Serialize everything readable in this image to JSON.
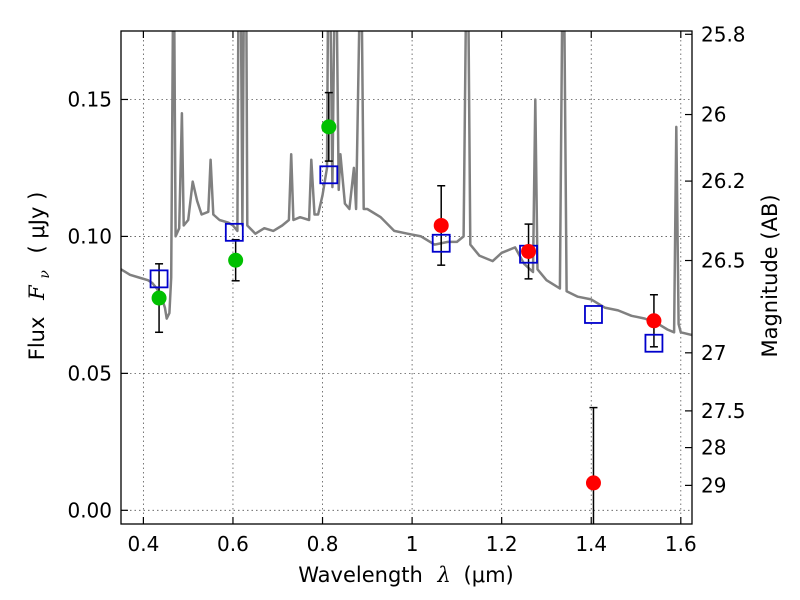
{
  "chart_data": {
    "type": "scatter",
    "xlabel": "Wavelength",
    "xlabel_symbol": "λ",
    "xlabel_unit": "(μm)",
    "ylabel": "Flux",
    "ylabel_symbol": "F",
    "ylabel_subscript": "ν",
    "ylabel_unit": "( μJy )",
    "y2label": "Magnitude (AB)",
    "xlim": [
      0.35,
      1.625
    ],
    "ylim": [
      -0.005,
      0.175
    ],
    "xticks": [
      0.4,
      0.6,
      0.8,
      1.0,
      1.2,
      1.4,
      1.6
    ],
    "xtick_labels": [
      "0.4",
      "0.6",
      "0.8",
      "1",
      "1.2",
      "1.4",
      "1.6"
    ],
    "yticks": [
      0.0,
      0.05,
      0.1,
      0.15
    ],
    "ytick_labels": [
      "0.00",
      "0.05",
      "0.10",
      "0.15"
    ],
    "y2ticks": [
      {
        "label": "25.8",
        "flux": 0.1738
      },
      {
        "label": "26",
        "flux": 0.1445
      },
      {
        "label": "26.2",
        "flux": 0.1202
      },
      {
        "label": "26.5",
        "flux": 0.0912
      },
      {
        "label": "27",
        "flux": 0.0575
      },
      {
        "label": "27.5",
        "flux": 0.0363
      },
      {
        "label": "28",
        "flux": 0.0229
      },
      {
        "label": "29",
        "flux": 0.0091
      }
    ],
    "grid": true,
    "colors": {
      "model": "#808080",
      "green": "#00c000",
      "red": "#ff0000",
      "model_points": "#0000cc",
      "errorbar": "#000000",
      "grid": "#555555"
    },
    "series": [
      {
        "marker": "circle",
        "color": "green",
        "points": [
          {
            "x": 0.435,
            "y": 0.0775,
            "yerr": 0.0125
          },
          {
            "x": 0.606,
            "y": 0.0913,
            "yerr": 0.0075
          },
          {
            "x": 0.814,
            "y": 0.14,
            "yerr": 0.0125
          }
        ]
      },
      {
        "marker": "circle",
        "color": "red",
        "points": [
          {
            "x": 1.065,
            "y": 0.104,
            "yerr": 0.0145
          },
          {
            "x": 1.26,
            "y": 0.0945,
            "yerr": 0.01
          },
          {
            "x": 1.405,
            "y": 0.01,
            "yerr": 0.0275
          },
          {
            "x": 1.54,
            "y": 0.0692,
            "yerr": 0.0095
          }
        ]
      },
      {
        "marker": "open-square",
        "color": "model_points",
        "points": [
          {
            "x": 0.435,
            "y": 0.0845
          },
          {
            "x": 0.603,
            "y": 0.1015
          },
          {
            "x": 0.814,
            "y": 0.1225
          },
          {
            "x": 1.065,
            "y": 0.0975
          },
          {
            "x": 1.26,
            "y": 0.0935
          },
          {
            "x": 1.405,
            "y": 0.0715
          },
          {
            "x": 1.54,
            "y": 0.061
          }
        ]
      }
    ],
    "model_spectrum": {
      "color": "model",
      "points": [
        [
          0.35,
          0.088
        ],
        [
          0.37,
          0.086
        ],
        [
          0.39,
          0.085
        ],
        [
          0.41,
          0.084
        ],
        [
          0.42,
          0.083
        ],
        [
          0.43,
          0.081
        ],
        [
          0.44,
          0.078
        ],
        [
          0.448,
          0.074
        ],
        [
          0.452,
          0.07
        ],
        [
          0.458,
          0.072
        ],
        [
          0.462,
          0.085
        ],
        [
          0.466,
          0.178
        ],
        [
          0.469,
          0.178
        ],
        [
          0.472,
          0.1
        ],
        [
          0.48,
          0.103
        ],
        [
          0.486,
          0.145
        ],
        [
          0.49,
          0.104
        ],
        [
          0.5,
          0.106
        ],
        [
          0.51,
          0.12
        ],
        [
          0.52,
          0.113
        ],
        [
          0.53,
          0.108
        ],
        [
          0.545,
          0.109
        ],
        [
          0.55,
          0.128
        ],
        [
          0.556,
          0.108
        ],
        [
          0.57,
          0.106
        ],
        [
          0.59,
          0.105
        ],
        [
          0.6,
          0.104
        ],
        [
          0.61,
          0.102
        ],
        [
          0.612,
          0.178
        ],
        [
          0.618,
          0.178
        ],
        [
          0.621,
          0.104
        ],
        [
          0.624,
          0.178
        ],
        [
          0.63,
          0.178
        ],
        [
          0.632,
          0.104
        ],
        [
          0.65,
          0.101
        ],
        [
          0.67,
          0.103
        ],
        [
          0.69,
          0.102
        ],
        [
          0.71,
          0.104
        ],
        [
          0.725,
          0.106
        ],
        [
          0.73,
          0.13
        ],
        [
          0.735,
          0.106
        ],
        [
          0.75,
          0.107
        ],
        [
          0.77,
          0.106
        ],
        [
          0.775,
          0.128
        ],
        [
          0.782,
          0.108
        ],
        [
          0.79,
          0.108
        ],
        [
          0.8,
          0.115
        ],
        [
          0.81,
          0.125
        ],
        [
          0.812,
          0.178
        ],
        [
          0.818,
          0.178
        ],
        [
          0.822,
          0.118
        ],
        [
          0.826,
          0.178
        ],
        [
          0.832,
          0.178
        ],
        [
          0.836,
          0.117
        ],
        [
          0.84,
          0.13
        ],
        [
          0.85,
          0.112
        ],
        [
          0.86,
          0.11
        ],
        [
          0.87,
          0.125
        ],
        [
          0.875,
          0.11
        ],
        [
          0.882,
          0.178
        ],
        [
          0.888,
          0.178
        ],
        [
          0.892,
          0.11
        ],
        [
          0.9,
          0.11
        ],
        [
          0.93,
          0.107
        ],
        [
          0.96,
          0.102
        ],
        [
          0.99,
          0.101
        ],
        [
          1.02,
          0.1
        ],
        [
          1.05,
          0.097
        ],
        [
          1.08,
          0.098
        ],
        [
          1.1,
          0.098
        ],
        [
          1.115,
          0.1
        ],
        [
          1.12,
          0.178
        ],
        [
          1.126,
          0.178
        ],
        [
          1.13,
          0.097
        ],
        [
          1.15,
          0.093
        ],
        [
          1.18,
          0.091
        ],
        [
          1.2,
          0.094
        ],
        [
          1.23,
          0.096
        ],
        [
          1.25,
          0.09
        ],
        [
          1.27,
          0.087
        ],
        [
          1.275,
          0.15
        ],
        [
          1.28,
          0.088
        ],
        [
          1.3,
          0.084
        ],
        [
          1.32,
          0.082
        ],
        [
          1.33,
          0.081
        ],
        [
          1.335,
          0.178
        ],
        [
          1.34,
          0.178
        ],
        [
          1.345,
          0.08
        ],
        [
          1.37,
          0.078
        ],
        [
          1.4,
          0.077
        ],
        [
          1.43,
          0.074
        ],
        [
          1.46,
          0.073
        ],
        [
          1.49,
          0.071
        ],
        [
          1.52,
          0.07
        ],
        [
          1.55,
          0.068
        ],
        [
          1.57,
          0.066
        ],
        [
          1.585,
          0.065
        ],
        [
          1.59,
          0.14
        ],
        [
          1.595,
          0.068
        ],
        [
          1.6,
          0.065
        ],
        [
          1.625,
          0.064
        ]
      ]
    }
  }
}
